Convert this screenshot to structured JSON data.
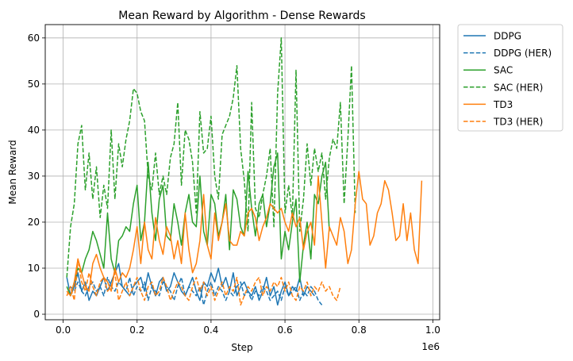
{
  "chart_data": {
    "type": "line",
    "title": "Mean Reward by Algorithm - Dense Rewards",
    "xlabel": "Step",
    "ylabel": "Mean Reward",
    "x_offset_label": "1e6",
    "xlim": [
      -0.0485,
      1.0185
    ],
    "ylim": [
      -1.2,
      62.9
    ],
    "x_ticks": [
      0.0,
      0.2,
      0.4,
      0.6,
      0.8,
      1.0
    ],
    "x_tick_labels": [
      "0.0",
      "0.2",
      "0.4",
      "0.6",
      "0.8",
      "1.0"
    ],
    "y_ticks": [
      0,
      10,
      20,
      30,
      40,
      50,
      60
    ],
    "y_tick_labels": [
      "0",
      "10",
      "20",
      "30",
      "40",
      "50",
      "60"
    ],
    "grid": true,
    "legend_position": "outside-top-right",
    "series": [
      {
        "name": "DDPG",
        "color": "#1f77b4",
        "dash": "solid",
        "x": [
          0.01,
          0.02,
          0.03,
          0.04,
          0.05,
          0.06,
          0.07,
          0.08,
          0.09,
          0.1,
          0.11,
          0.12,
          0.13,
          0.14,
          0.15,
          0.16,
          0.17,
          0.18,
          0.19,
          0.2,
          0.21,
          0.22,
          0.23,
          0.24,
          0.25,
          0.26,
          0.27,
          0.28,
          0.29,
          0.3,
          0.31,
          0.32,
          0.33,
          0.34,
          0.35,
          0.36,
          0.37,
          0.38,
          0.39,
          0.4,
          0.41,
          0.42,
          0.43,
          0.44,
          0.45,
          0.46,
          0.47,
          0.48,
          0.49,
          0.5,
          0.51,
          0.52,
          0.53,
          0.54,
          0.55,
          0.56,
          0.57,
          0.58,
          0.59,
          0.6,
          0.61,
          0.62,
          0.63,
          0.64,
          0.65,
          0.66,
          0.67,
          0.68
        ],
        "y": [
          8,
          4,
          6,
          9,
          5,
          7,
          3,
          5,
          4,
          6,
          8,
          5,
          7,
          9,
          11,
          6,
          5,
          4,
          6,
          7,
          8,
          5,
          9,
          6,
          4,
          7,
          8,
          5,
          6,
          9,
          7,
          5,
          4,
          6,
          8,
          5,
          3,
          7,
          6,
          9,
          7,
          10,
          6,
          8,
          5,
          9,
          4,
          6,
          7,
          5,
          4,
          6,
          3,
          5,
          8,
          4,
          6,
          2,
          5,
          7,
          4,
          6,
          5,
          8,
          4,
          6,
          5,
          4
        ]
      },
      {
        "name": "DDPG (HER)",
        "color": "#1f77b4",
        "dash": "dashed",
        "x": [
          0.02,
          0.03,
          0.04,
          0.05,
          0.06,
          0.07,
          0.08,
          0.09,
          0.1,
          0.11,
          0.12,
          0.13,
          0.14,
          0.15,
          0.16,
          0.17,
          0.18,
          0.19,
          0.2,
          0.21,
          0.22,
          0.23,
          0.24,
          0.25,
          0.26,
          0.27,
          0.28,
          0.29,
          0.3,
          0.31,
          0.32,
          0.33,
          0.34,
          0.35,
          0.36,
          0.37,
          0.38,
          0.39,
          0.4,
          0.41,
          0.42,
          0.43,
          0.44,
          0.45,
          0.46,
          0.47,
          0.48,
          0.49,
          0.5,
          0.51,
          0.52,
          0.53,
          0.54,
          0.55,
          0.56,
          0.57,
          0.58,
          0.59,
          0.6,
          0.61,
          0.62,
          0.63,
          0.64,
          0.65,
          0.66,
          0.67,
          0.68,
          0.69,
          0.7
        ],
        "y": [
          6,
          5,
          7,
          5,
          4,
          6,
          7,
          5,
          6,
          4,
          8,
          6,
          5,
          7,
          6,
          5,
          8,
          4,
          6,
          5,
          7,
          3,
          6,
          5,
          4,
          7,
          6,
          5,
          3,
          6,
          8,
          4,
          6,
          5,
          4,
          6,
          2,
          5,
          7,
          4,
          6,
          5,
          3,
          5,
          4,
          6,
          7,
          4,
          5,
          3,
          5,
          4,
          6,
          5,
          3,
          4,
          5,
          3,
          6,
          4,
          5,
          6,
          3,
          5,
          4,
          6,
          5,
          3,
          2
        ]
      },
      {
        "name": "SAC",
        "color": "#2ca02c",
        "dash": "solid",
        "x": [
          0.01,
          0.02,
          0.03,
          0.04,
          0.05,
          0.06,
          0.07,
          0.08,
          0.09,
          0.1,
          0.11,
          0.12,
          0.13,
          0.14,
          0.15,
          0.16,
          0.17,
          0.18,
          0.19,
          0.2,
          0.21,
          0.22,
          0.23,
          0.24,
          0.25,
          0.26,
          0.27,
          0.28,
          0.29,
          0.3,
          0.31,
          0.32,
          0.33,
          0.34,
          0.35,
          0.36,
          0.37,
          0.38,
          0.39,
          0.4,
          0.41,
          0.42,
          0.43,
          0.44,
          0.45,
          0.46,
          0.47,
          0.48,
          0.49,
          0.5,
          0.51,
          0.52,
          0.53,
          0.54,
          0.55,
          0.56,
          0.57,
          0.58,
          0.59,
          0.6,
          0.61,
          0.62,
          0.63,
          0.64,
          0.65,
          0.66,
          0.67,
          0.68,
          0.69,
          0.7,
          0.71,
          0.72
        ],
        "y": [
          6,
          4,
          7,
          10,
          9,
          12,
          14,
          18,
          16,
          13,
          10,
          22,
          12,
          9,
          16,
          17,
          19,
          18,
          24,
          28,
          16,
          20,
          33,
          22,
          16,
          25,
          28,
          17,
          16,
          24,
          20,
          15,
          22,
          26,
          20,
          19,
          30,
          18,
          15,
          26,
          24,
          17,
          20,
          26,
          14,
          27,
          25,
          19,
          17,
          31,
          23,
          17,
          24,
          26,
          19,
          24,
          32,
          35,
          12,
          18,
          14,
          20,
          25,
          7,
          15,
          20,
          12,
          26,
          24,
          30,
          33,
          18
        ]
      },
      {
        "name": "SAC (HER)",
        "color": "#2ca02c",
        "dash": "dashed",
        "x": [
          0.01,
          0.02,
          0.03,
          0.04,
          0.05,
          0.06,
          0.07,
          0.08,
          0.09,
          0.1,
          0.11,
          0.12,
          0.13,
          0.14,
          0.15,
          0.16,
          0.17,
          0.18,
          0.19,
          0.2,
          0.21,
          0.22,
          0.23,
          0.24,
          0.25,
          0.26,
          0.27,
          0.28,
          0.29,
          0.3,
          0.31,
          0.32,
          0.33,
          0.34,
          0.35,
          0.36,
          0.37,
          0.38,
          0.39,
          0.4,
          0.41,
          0.42,
          0.43,
          0.44,
          0.45,
          0.46,
          0.47,
          0.48,
          0.49,
          0.5,
          0.51,
          0.52,
          0.53,
          0.54,
          0.55,
          0.56,
          0.57,
          0.58,
          0.59,
          0.6,
          0.61,
          0.62,
          0.63,
          0.64,
          0.65,
          0.66,
          0.67,
          0.68,
          0.69,
          0.7,
          0.71,
          0.72,
          0.73,
          0.74,
          0.75,
          0.76,
          0.77,
          0.78,
          0.79
        ],
        "y": [
          8,
          19,
          24,
          37,
          41,
          27,
          35,
          25,
          32,
          21,
          28,
          23,
          40,
          25,
          37,
          32,
          38,
          42,
          49,
          48,
          44,
          42,
          30,
          27,
          35,
          26,
          30,
          26,
          34,
          37,
          46,
          28,
          40,
          38,
          33,
          22,
          44,
          35,
          36,
          43,
          30,
          25,
          39,
          41,
          43,
          47,
          54,
          36,
          29,
          18,
          46,
          23,
          21,
          26,
          30,
          36,
          19,
          48,
          60,
          22,
          28,
          21,
          53,
          18,
          25,
          37,
          28,
          36,
          31,
          35,
          25,
          34,
          38,
          36,
          46,
          24,
          38,
          54,
          22
        ]
      },
      {
        "name": "TD3",
        "color": "#ff7f0e",
        "dash": "solid",
        "x": [
          0.01,
          0.02,
          0.03,
          0.04,
          0.05,
          0.06,
          0.07,
          0.08,
          0.09,
          0.1,
          0.11,
          0.12,
          0.13,
          0.14,
          0.15,
          0.16,
          0.17,
          0.18,
          0.19,
          0.2,
          0.21,
          0.22,
          0.23,
          0.24,
          0.25,
          0.26,
          0.27,
          0.28,
          0.29,
          0.3,
          0.31,
          0.32,
          0.33,
          0.34,
          0.35,
          0.36,
          0.37,
          0.38,
          0.39,
          0.4,
          0.41,
          0.42,
          0.43,
          0.44,
          0.45,
          0.46,
          0.47,
          0.48,
          0.49,
          0.5,
          0.51,
          0.52,
          0.53,
          0.54,
          0.55,
          0.56,
          0.57,
          0.58,
          0.59,
          0.6,
          0.61,
          0.62,
          0.63,
          0.64,
          0.65,
          0.66,
          0.67,
          0.68,
          0.69,
          0.7,
          0.71,
          0.72,
          0.73,
          0.74,
          0.75,
          0.76,
          0.77,
          0.78,
          0.79,
          0.8,
          0.81,
          0.82,
          0.83,
          0.84,
          0.85,
          0.86,
          0.87,
          0.88,
          0.89,
          0.9,
          0.91,
          0.92,
          0.93,
          0.94,
          0.95,
          0.96,
          0.97
        ],
        "y": [
          5,
          4,
          7,
          12,
          9,
          6,
          5,
          11,
          13,
          10,
          8,
          7,
          5,
          10,
          7,
          9,
          8,
          10,
          14,
          19,
          11,
          20,
          14,
          12,
          21,
          16,
          13,
          19,
          17,
          12,
          16,
          11,
          22,
          14,
          9,
          11,
          16,
          26,
          15,
          12,
          22,
          16,
          20,
          24,
          16,
          15,
          15,
          18,
          17,
          22,
          23,
          21,
          16,
          19,
          21,
          24,
          23,
          22,
          23,
          20,
          18,
          22,
          19,
          21,
          14,
          18,
          20,
          15,
          30,
          20,
          10,
          19,
          17,
          15,
          21,
          18,
          11,
          14,
          24,
          31,
          25,
          24,
          15,
          17,
          22,
          24,
          29,
          27,
          22,
          16,
          17,
          24,
          16,
          22,
          14,
          11,
          29
        ]
      },
      {
        "name": "TD3 (HER)",
        "color": "#ff7f0e",
        "dash": "dashed",
        "x": [
          0.01,
          0.02,
          0.03,
          0.04,
          0.05,
          0.06,
          0.07,
          0.08,
          0.09,
          0.1,
          0.11,
          0.12,
          0.13,
          0.14,
          0.15,
          0.16,
          0.17,
          0.18,
          0.19,
          0.2,
          0.21,
          0.22,
          0.23,
          0.24,
          0.25,
          0.26,
          0.27,
          0.28,
          0.29,
          0.3,
          0.31,
          0.32,
          0.33,
          0.34,
          0.35,
          0.36,
          0.37,
          0.38,
          0.39,
          0.4,
          0.41,
          0.42,
          0.43,
          0.44,
          0.45,
          0.46,
          0.47,
          0.48,
          0.49,
          0.5,
          0.51,
          0.52,
          0.53,
          0.54,
          0.55,
          0.56,
          0.57,
          0.58,
          0.59,
          0.6,
          0.61,
          0.62,
          0.63,
          0.64,
          0.65,
          0.66,
          0.67,
          0.68,
          0.69,
          0.7,
          0.71,
          0.72,
          0.73,
          0.74,
          0.75
        ],
        "y": [
          4,
          6,
          3,
          12,
          7,
          5,
          9,
          6,
          4,
          7,
          8,
          5,
          6,
          9,
          3,
          5,
          7,
          4,
          6,
          8,
          5,
          3,
          6,
          7,
          4,
          5,
          8,
          6,
          3,
          5,
          7,
          6,
          4,
          3,
          6,
          8,
          5,
          7,
          4,
          6,
          3,
          5,
          7,
          4,
          6,
          5,
          8,
          2,
          4,
          6,
          5,
          7,
          8,
          4,
          6,
          5,
          7,
          6,
          8,
          5,
          7,
          4,
          3,
          6,
          5,
          7,
          4,
          6,
          5,
          7,
          5,
          6,
          4,
          3,
          6
        ]
      }
    ]
  }
}
